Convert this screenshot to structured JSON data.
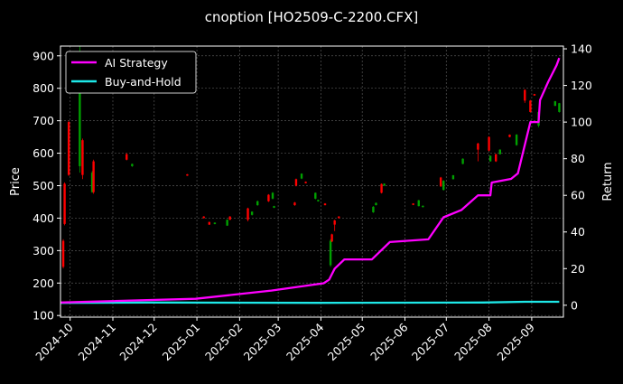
{
  "chart_data": {
    "type": "line",
    "title": "cnoption [HO2509-C-2200.CFX]",
    "xlabel": "",
    "ylabel": "Price",
    "ylabel_right": "Return",
    "x_origin_date": "2024-10-01",
    "xlim_days": [
      -7,
      358
    ],
    "ylim_left": [
      95,
      930
    ],
    "ylim_right": [
      -6.5,
      141.5
    ],
    "grid": true,
    "legend_position": "top-left",
    "x_ticks": [
      {
        "day": 0,
        "label": "2024-10"
      },
      {
        "day": 31,
        "label": "2024-11"
      },
      {
        "day": 61,
        "label": "2024-12"
      },
      {
        "day": 92,
        "label": "2025-01"
      },
      {
        "day": 123,
        "label": "2025-02"
      },
      {
        "day": 151,
        "label": "2025-03"
      },
      {
        "day": 182,
        "label": "2025-04"
      },
      {
        "day": 212,
        "label": "2025-05"
      },
      {
        "day": 243,
        "label": "2025-06"
      },
      {
        "day": 273,
        "label": "2025-07"
      },
      {
        "day": 304,
        "label": "2025-08"
      },
      {
        "day": 335,
        "label": "2025-09"
      }
    ],
    "y_ticks_left": [
      100,
      200,
      300,
      400,
      500,
      600,
      700,
      800,
      900
    ],
    "y_ticks_right": [
      0,
      20,
      40,
      60,
      80,
      100,
      120,
      140
    ],
    "colors": {
      "up": "#00a000",
      "down": "#ff0000",
      "ai": "#ff00ff",
      "bh": "#1ee8e8"
    },
    "candles": [
      {
        "day": -5,
        "o": 330,
        "c": 250,
        "h": 335,
        "l": 245
      },
      {
        "day": -4,
        "o": 506,
        "c": 382,
        "h": 510,
        "l": 378
      },
      {
        "day": -1,
        "o": 696,
        "c": 533,
        "h": 700,
        "l": 530
      },
      {
        "day": 7,
        "o": 560,
        "c": 800,
        "h": 930,
        "l": 540
      },
      {
        "day": 9,
        "o": 640,
        "c": 533,
        "h": 645,
        "l": 520
      },
      {
        "day": 16,
        "o": 480,
        "c": 540,
        "h": 545,
        "l": 478
      },
      {
        "day": 17,
        "o": 575,
        "c": 480,
        "h": 580,
        "l": 475
      },
      {
        "day": 41,
        "o": 597,
        "c": 580,
        "h": 600,
        "l": 578
      },
      {
        "day": 45,
        "o": 560,
        "c": 567,
        "h": 568,
        "l": 558
      },
      {
        "day": 85,
        "o": 535,
        "c": 531,
        "h": 536,
        "l": 530
      },
      {
        "day": 97,
        "o": 405,
        "c": 400,
        "h": 406,
        "l": 399
      },
      {
        "day": 101,
        "o": 388,
        "c": 380,
        "h": 389,
        "l": 379
      },
      {
        "day": 105,
        "o": 382,
        "c": 386,
        "h": 387,
        "l": 381
      },
      {
        "day": 114,
        "o": 377,
        "c": 395,
        "h": 396,
        "l": 376
      },
      {
        "day": 116,
        "o": 405,
        "c": 395,
        "h": 406,
        "l": 394
      },
      {
        "day": 129,
        "o": 430,
        "c": 395,
        "h": 432,
        "l": 390
      },
      {
        "day": 132,
        "o": 410,
        "c": 420,
        "h": 421,
        "l": 408
      },
      {
        "day": 136,
        "o": 440,
        "c": 452,
        "h": 454,
        "l": 438
      },
      {
        "day": 144,
        "o": 472,
        "c": 452,
        "h": 474,
        "l": 450
      },
      {
        "day": 147,
        "o": 460,
        "c": 478,
        "h": 480,
        "l": 458
      },
      {
        "day": 148,
        "o": 432,
        "c": 437,
        "h": 438,
        "l": 431
      },
      {
        "day": 163,
        "o": 448,
        "c": 440,
        "h": 450,
        "l": 438
      },
      {
        "day": 164,
        "o": 520,
        "c": 500,
        "h": 522,
        "l": 498
      },
      {
        "day": 168,
        "o": 522,
        "c": 537,
        "h": 538,
        "l": 520
      },
      {
        "day": 171,
        "o": 512,
        "c": 508,
        "h": 513,
        "l": 507
      },
      {
        "day": 178,
        "o": 460,
        "c": 478,
        "h": 479,
        "l": 458
      },
      {
        "day": 180,
        "o": 452,
        "c": 456,
        "h": 457,
        "l": 451
      },
      {
        "day": 185,
        "o": 445,
        "c": 440,
        "h": 446,
        "l": 439
      },
      {
        "day": 189,
        "o": 255,
        "c": 330,
        "h": 335,
        "l": 250
      },
      {
        "day": 190,
        "o": 350,
        "c": 328,
        "h": 352,
        "l": 326
      },
      {
        "day": 192,
        "o": 393,
        "c": 380,
        "h": 395,
        "l": 360
      },
      {
        "day": 195,
        "o": 405,
        "c": 400,
        "h": 406,
        "l": 399
      },
      {
        "day": 220,
        "o": 418,
        "c": 435,
        "h": 437,
        "l": 416
      },
      {
        "day": 222,
        "o": 440,
        "c": 447,
        "h": 448,
        "l": 439
      },
      {
        "day": 226,
        "o": 505,
        "c": 478,
        "h": 507,
        "l": 476
      },
      {
        "day": 228,
        "o": 500,
        "c": 506,
        "h": 507,
        "l": 499
      },
      {
        "day": 249,
        "o": 445,
        "c": 441,
        "h": 446,
        "l": 440
      },
      {
        "day": 253,
        "o": 437,
        "c": 455,
        "h": 456,
        "l": 436
      },
      {
        "day": 256,
        "o": 434,
        "c": 438,
        "h": 439,
        "l": 433
      },
      {
        "day": 269,
        "o": 525,
        "c": 498,
        "h": 527,
        "l": 496
      },
      {
        "day": 271,
        "o": 487,
        "c": 515,
        "h": 517,
        "l": 485
      },
      {
        "day": 278,
        "o": 520,
        "c": 532,
        "h": 533,
        "l": 519
      },
      {
        "day": 285,
        "o": 567,
        "c": 583,
        "h": 584,
        "l": 566
      },
      {
        "day": 296,
        "o": 630,
        "c": 611,
        "h": 632,
        "l": 575
      },
      {
        "day": 304,
        "o": 650,
        "c": 608,
        "h": 652,
        "l": 606
      },
      {
        "day": 305,
        "o": 575,
        "c": 592,
        "h": 593,
        "l": 574
      },
      {
        "day": 309,
        "o": 597,
        "c": 575,
        "h": 598,
        "l": 573
      },
      {
        "day": 312,
        "o": 597,
        "c": 611,
        "h": 612,
        "l": 596
      },
      {
        "day": 319,
        "o": 657,
        "c": 650,
        "h": 658,
        "l": 649
      },
      {
        "day": 324,
        "o": 625,
        "c": 657,
        "h": 659,
        "l": 623
      },
      {
        "day": 330,
        "o": 795,
        "c": 762,
        "h": 797,
        "l": 755
      },
      {
        "day": 334,
        "o": 762,
        "c": 727,
        "h": 764,
        "l": 725
      },
      {
        "day": 337,
        "o": 782,
        "c": 778,
        "h": 783,
        "l": 777
      },
      {
        "day": 340,
        "o": 685,
        "c": 727,
        "h": 729,
        "l": 680
      },
      {
        "day": 352,
        "o": 746,
        "c": 760,
        "h": 761,
        "l": 745
      },
      {
        "day": 355,
        "o": 727,
        "c": 754,
        "h": 755,
        "l": 725
      }
    ],
    "series": [
      {
        "name": "AI Strategy",
        "axis": "right",
        "x": [
          -7,
          91,
          146,
          184,
          188,
          192,
          199,
          219,
          232,
          260,
          271,
          284,
          296,
          305,
          306,
          320,
          325,
          334,
          340,
          341,
          347,
          353,
          355
        ],
        "y": [
          1.5,
          3.5,
          8,
          12,
          14,
          20,
          25,
          25,
          34.5,
          36,
          48,
          52,
          60,
          60,
          67,
          69,
          72,
          100,
          100,
          112,
          122,
          131,
          135
        ]
      },
      {
        "name": "Buy-and-Hold",
        "axis": "right",
        "x": [
          -7,
          60,
          180,
          300,
          330,
          355
        ],
        "y": [
          1.3,
          1.5,
          1.3,
          1.5,
          1.9,
          1.9
        ]
      }
    ]
  }
}
